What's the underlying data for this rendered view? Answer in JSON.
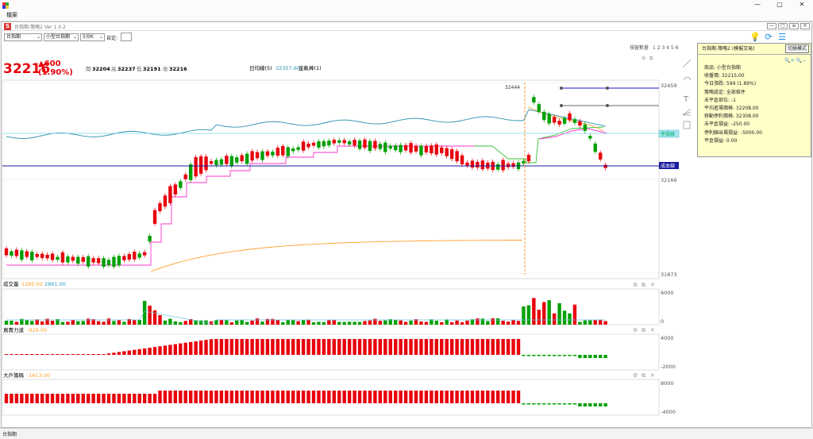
{
  "window": {
    "menu_file": "檔案",
    "chart_title": "台指期-策略2 Ver 1.0.2",
    "ctl_min": "—",
    "ctl_max": "▢",
    "ctl_close": "✕"
  },
  "toolbar": {
    "symbol": "台指期",
    "product": "小型台指期",
    "period": "5分K",
    "custom_label": "自定:"
  },
  "window_count": {
    "label": "視窗數量",
    "nums": "1 2 3 4 5 6"
  },
  "quote": {
    "last": "32216",
    "change": "▲600",
    "change_pct": "(1.90%)",
    "open_lbl": "開",
    "open": "32204",
    "high_lbl": "高",
    "high": "32237",
    "low_lbl": "低",
    "low": "32191",
    "close_lbl": "收",
    "close": "32216"
  },
  "indicators": {
    "ma_label": "日均線(5)",
    "ma_value": "32357.60",
    "band_label": "金軌棒(1)"
  },
  "price_axis": {
    "top": "32459",
    "mid": "32166",
    "bottom": "31873",
    "entry_marker": "32444"
  },
  "line_labels": {
    "stop": "停損線",
    "cost": "成本線"
  },
  "volume": {
    "label": "成交量",
    "v1": "1285.00",
    "v2": "2881.00",
    "axis_top": "6000",
    "axis_bottom": "0"
  },
  "power": {
    "label": "買賣力道",
    "v1": "-929.00",
    "axis_top": "4000",
    "axis_bottom": "-2000"
  },
  "bigplayer": {
    "label": "大戶籌碼",
    "v1": "-1613.00",
    "axis_top": "8000",
    "axis_bottom": "-4000"
  },
  "info_panel": {
    "title": "台指期-策略2 (模擬交易)",
    "mode_button": "切換模式",
    "rows": [
      "商品: 小型台指期",
      "收盤價: 32215.00",
      "今日漲跌: 599 (1.89%)",
      "策略設定: 全部條件",
      "未平倉部位: -1",
      "平均進場價格: 32208.00",
      "移動停利價格: 32308.00",
      "未平倉損益: -250.00",
      "停利線出場損益: -5000.00",
      "平倉損益: 0.00"
    ]
  },
  "status": {
    "tab": "台指期"
  },
  "colors": {
    "up": "#e8000b",
    "down": "#00a000",
    "ma": "#2e8fb0",
    "band": "#ff33cc",
    "long_ma": "#ff9f2a",
    "cost": "#1a1aa0",
    "stop": "#77d8e8"
  }
}
